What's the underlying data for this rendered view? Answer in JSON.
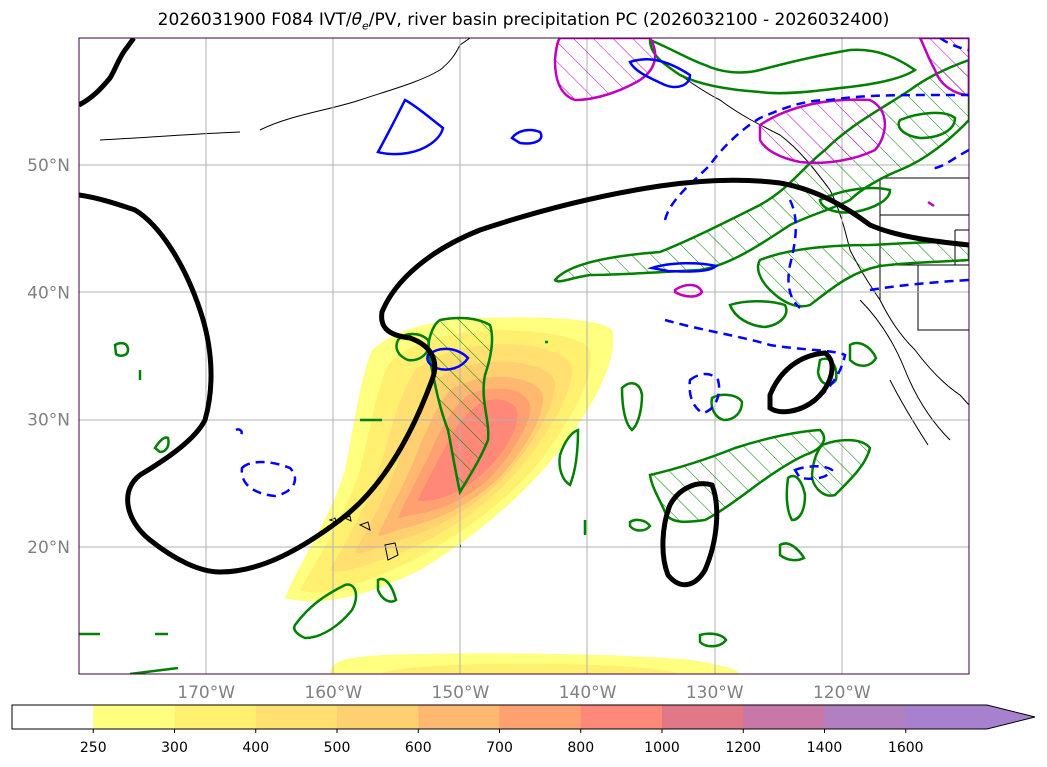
{
  "chart_data": {
    "type": "contour-map",
    "title_parts": {
      "prefix": "2026031900 F084 IVT/",
      "symbol": "θ",
      "subscript": "e",
      "suffix": "/PV, river basin precipitation PC (2026032100 - 2026032400)"
    },
    "lon_range": [
      -180,
      -110
    ],
    "lat_range": [
      10,
      60
    ],
    "lat_ticks": [
      {
        "value": 50,
        "label": "50°N"
      },
      {
        "value": 40,
        "label": "40°N"
      },
      {
        "value": 30,
        "label": "30°N"
      },
      {
        "value": 20,
        "label": "20°N"
      }
    ],
    "lon_ticks": [
      {
        "value": -170,
        "label": "170°W"
      },
      {
        "value": -160,
        "label": "160°W"
      },
      {
        "value": -150,
        "label": "150°W"
      },
      {
        "value": -140,
        "label": "140°W"
      },
      {
        "value": -130,
        "label": "130°W"
      },
      {
        "value": -120,
        "label": "120°W"
      }
    ],
    "grid": true,
    "ivt_levels": [
      "250",
      "300",
      "400",
      "500",
      "600",
      "700",
      "800",
      "1000",
      "1200",
      "1400",
      "1600"
    ],
    "ivt_colors": [
      "#ffff80",
      "#fff070",
      "#ffe070",
      "#ffd070",
      "#ffb870",
      "#ffa070",
      "#ff8878",
      "#e07888",
      "#c878a8",
      "#b080c0",
      "#a880d0"
    ],
    "colorbar_extend": "max",
    "contour_colors": {
      "theta_e": "#000000",
      "pv_positive": "#0000ff",
      "precip": "#008000",
      "precip_high": "#c000c0"
    }
  }
}
